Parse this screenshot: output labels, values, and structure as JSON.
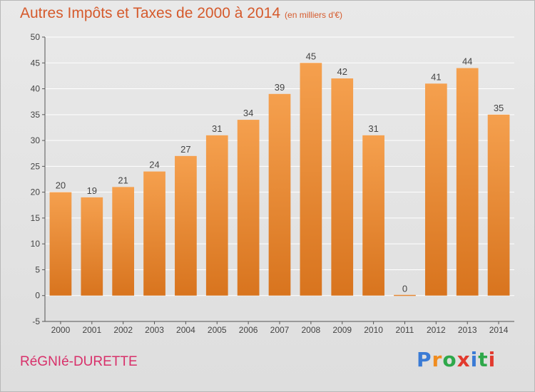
{
  "header": {
    "title": "Autres Impôts et Taxes de 2000 à 2014",
    "unit": "(en milliers d'€)"
  },
  "footer": {
    "commune": "RéGNIé-DURETTE"
  },
  "logo": {
    "text": "Proxiti",
    "letter_colors": [
      "#3a7bd5",
      "#f08c1e",
      "#2ea84a",
      "#e23a2e",
      "#3a7bd5",
      "#2ea84a",
      "#e23a2e"
    ]
  },
  "colors": {
    "bar_light": "#f5a04e",
    "bar_dark": "#d8741e",
    "grid": "#ffffff",
    "axis": "#555555"
  },
  "chart_data": {
    "type": "bar",
    "title": "Autres Impôts et Taxes de 2000 à 2014",
    "subtitle": "(en milliers d'€)",
    "xlabel": "",
    "ylabel": "",
    "categories": [
      "2000",
      "2001",
      "2002",
      "2003",
      "2004",
      "2005",
      "2006",
      "2007",
      "2008",
      "2009",
      "2010",
      "2011",
      "2012",
      "2013",
      "2014"
    ],
    "values": [
      20,
      19,
      21,
      24,
      27,
      31,
      34,
      39,
      45,
      42,
      31,
      0,
      41,
      44,
      35
    ],
    "ylim": [
      -5,
      50
    ],
    "yticks": [
      -5,
      0,
      5,
      10,
      15,
      20,
      25,
      30,
      35,
      40,
      45,
      50
    ],
    "grid": true,
    "legend": "none"
  }
}
